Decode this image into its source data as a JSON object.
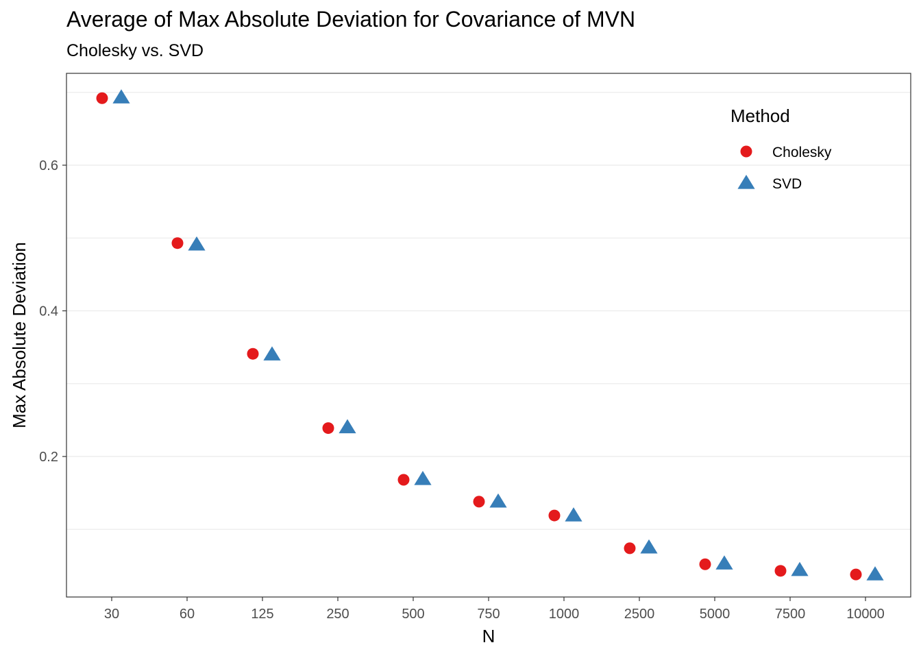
{
  "chart_data": {
    "type": "scatter",
    "title": "Average of Max Absolute Deviation for Covariance of MVN",
    "subtitle": "Cholesky vs. SVD",
    "xlabel": "N",
    "ylabel": "Max Absolute Deviation",
    "categories": [
      "30",
      "60",
      "125",
      "250",
      "500",
      "750",
      "1000",
      "2500",
      "5000",
      "7500",
      "10000"
    ],
    "ylim": [
      0.0,
      0.7
    ],
    "yticks": [
      0.2,
      0.4,
      0.6
    ],
    "ytick_labels": [
      "0.2",
      "0.4",
      "0.6"
    ],
    "grid": true,
    "legend": {
      "title": "Method",
      "position": "top-right"
    },
    "series": [
      {
        "name": "Cholesky",
        "shape": "circle",
        "color": "#e41a1c",
        "values": [
          0.692,
          0.493,
          0.341,
          0.239,
          0.168,
          0.138,
          0.119,
          0.074,
          0.052,
          0.043,
          0.038
        ]
      },
      {
        "name": "SVD",
        "shape": "triangle",
        "color": "#377eb8",
        "values": [
          0.693,
          0.491,
          0.34,
          0.24,
          0.169,
          0.138,
          0.119,
          0.075,
          0.053,
          0.044,
          0.038
        ]
      }
    ]
  }
}
